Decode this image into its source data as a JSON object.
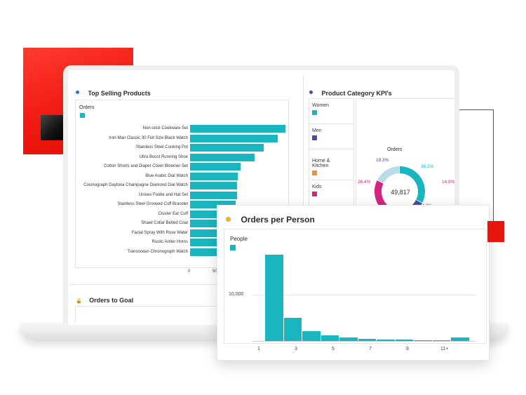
{
  "colors": {
    "accent_red": "#e8170d",
    "bar_teal": "#1ab6c0",
    "women": "#1ab6c0",
    "men": "#4b4aa3",
    "home_kitchen": "#f0922b",
    "kids": "#d6237f"
  },
  "top_selling": {
    "title": "Top Selling Products",
    "legend_label": "Orders",
    "x_ticks": [
      "0",
      "50"
    ],
    "chart_data": {
      "type": "bar",
      "orientation": "horizontal",
      "categories": [
        "Non-stick Cookware Set",
        "Iron-Man Classic 30 Full Size Black Watch",
        "Stainless Steel Cooking Pot",
        "Ultra Boost Running Shoe",
        "Cotton Shorts and Diaper Cover Bloomer Set",
        "Blue Arabic Dial Watch",
        "Cosmograph Daytona Champagne Diamond Dial Watch",
        "Unisex Footie and Hat Set",
        "Stainless Steel Grooved Cuff Bracelet",
        "Cluster Ear Cuff",
        "Shawl Collar Belted Coat",
        "Facial Spray With Rose Water",
        "Rustic Antler Horns",
        "Transocean Chronograph Watch"
      ],
      "values": [
        100,
        92,
        77,
        68,
        53,
        50,
        49,
        49,
        48,
        47,
        46,
        46,
        46,
        46
      ],
      "legend": [
        "Orders"
      ]
    }
  },
  "kpi": {
    "title": "Product Category KPI's",
    "categories": [
      {
        "label": "Women"
      },
      {
        "label": "Men"
      },
      {
        "label": "Home &\nKitchen"
      },
      {
        "label": "Kids"
      }
    ],
    "donut_title": "Orders",
    "donut_total": "49,817",
    "chart_data": {
      "type": "pie",
      "slices": [
        {
          "name": "Women",
          "value": 36.2,
          "label": "36.2%"
        },
        {
          "name": "Men",
          "value": 14.2,
          "label": "14.2%"
        },
        {
          "name": "Home & Kitchen",
          "value": 14.9,
          "label": "14.9%"
        },
        {
          "name": "Kids",
          "value": 26.4,
          "label": "26.4%"
        },
        {
          "name": "Other",
          "value": 19.3,
          "label": "19.3%"
        }
      ]
    }
  },
  "orders_goal": {
    "title": "Orders to Goal"
  },
  "orders_per_person": {
    "title": "Orders per Person",
    "legend_label": "People",
    "y_tick": "10,000",
    "x_ticks": [
      "1",
      "3",
      "5",
      "7",
      "9",
      "11+"
    ],
    "chart_data": {
      "type": "bar",
      "categories": [
        "1",
        "2",
        "3",
        "4",
        "5",
        "6",
        "7",
        "8",
        "9",
        "10",
        "11+"
      ],
      "values": [
        16100,
        4300,
        1900,
        1000,
        600,
        350,
        250,
        200,
        170,
        150,
        600
      ],
      "ylabel_tick": 10000,
      "legend": [
        "People"
      ]
    }
  }
}
